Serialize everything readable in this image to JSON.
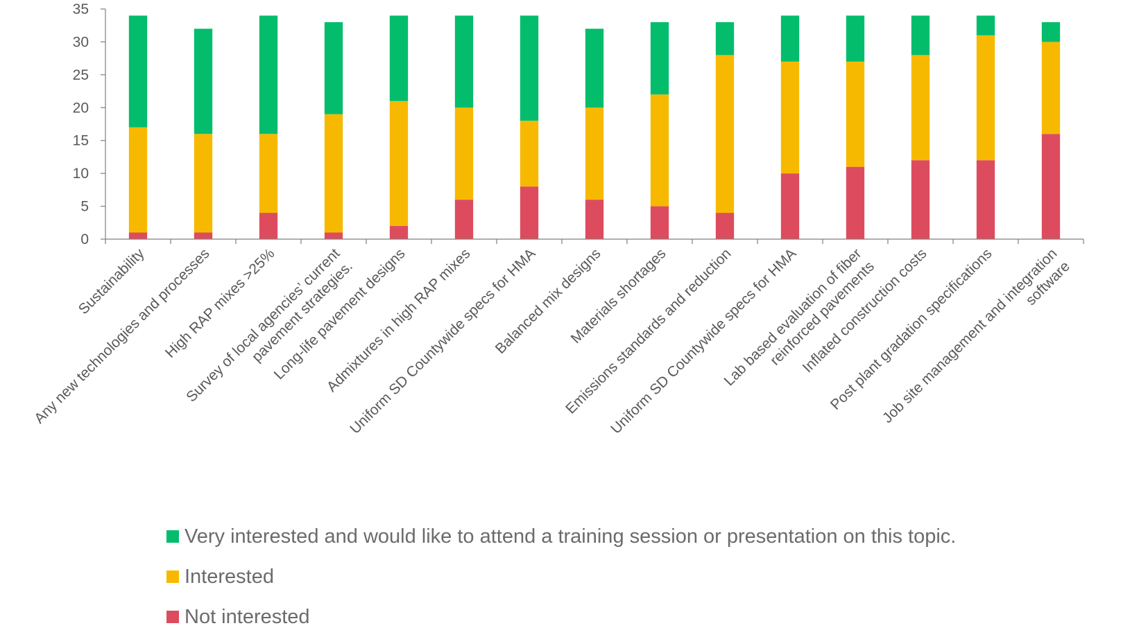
{
  "chart_data": {
    "type": "bar",
    "stacked": true,
    "categories": [
      "Sustainability",
      "Any new technologies and processes",
      "High RAP mixes >25%",
      "Survey of local agencies’ current pavement strategies.",
      "Long-life pavement designs",
      "Admixtures in high RAP mixes",
      "Uniform SD Countywide specs for HMA",
      "Balanced mix designs",
      "Materials shortages",
      "Emissions standards and reduction",
      "Uniform SD Countywide specs for HMA",
      "Lab based evaluation of fiber reinforced pavements",
      "Inflated construction costs",
      "Post plant gradation specifications",
      "Job site management and integration software"
    ],
    "series": [
      {
        "name": "Not interested",
        "color": "#DD4C5E",
        "values": [
          1,
          1,
          4,
          1,
          2,
          6,
          8,
          6,
          5,
          4,
          10,
          11,
          12,
          12,
          16
        ]
      },
      {
        "name": "Interested",
        "color": "#F7B900",
        "values": [
          16,
          15,
          12,
          18,
          19,
          14,
          10,
          14,
          17,
          24,
          17,
          16,
          16,
          19,
          14
        ]
      },
      {
        "name": "Very interested and would like to attend a training session or presentation on this topic.",
        "color": "#03BD6C",
        "values": [
          17,
          16,
          18,
          14,
          13,
          14,
          16,
          12,
          11,
          5,
          7,
          7,
          6,
          3,
          3
        ]
      }
    ],
    "ylim": [
      0,
      35
    ],
    "yticks": [
      0,
      5,
      10,
      15,
      20,
      25,
      30,
      35
    ],
    "title": "",
    "xlabel": "",
    "ylabel": "",
    "grid": false,
    "legend_position": "bottom"
  },
  "legend": {
    "items": [
      {
        "label": "Very interested and would like to attend a training session or presentation on this topic.",
        "color": "#03BD6C"
      },
      {
        "label": "Interested",
        "color": "#F7B900"
      },
      {
        "label": "Not interested",
        "color": "#DD4C5E"
      }
    ]
  }
}
